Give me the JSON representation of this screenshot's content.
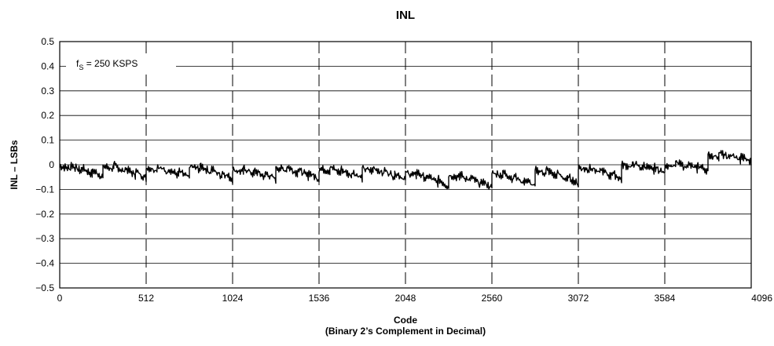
{
  "chart_data": {
    "type": "line",
    "title": "INL",
    "ylabel": "INL – LSBs",
    "xlabel": "Code",
    "xlabel_sub": "(Binary 2’s Complement in Decimal)",
    "xlim": [
      0,
      4096
    ],
    "ylim": [
      -0.5,
      0.5
    ],
    "x_ticks": [
      0,
      512,
      1024,
      1536,
      2048,
      2560,
      3072,
      3584,
      4096
    ],
    "x_tick_labels": [
      "0",
      "512",
      "1024",
      "1536",
      "2048",
      "2560",
      "3072",
      "3584",
      "4096"
    ],
    "y_ticks": [
      0.5,
      0.4,
      0.3,
      0.2,
      0.1,
      0,
      -0.1,
      -0.2,
      -0.3,
      -0.4,
      -0.5
    ],
    "y_tick_labels": [
      "0.5",
      "0.4",
      "0.3",
      "0.2",
      "0.1",
      "0",
      "−0.1",
      "−0.2",
      "−0.3",
      "−0.4",
      "−0.5"
    ],
    "grid": {
      "horizontal": "solid",
      "vertical": "dashed"
    },
    "annotation": {
      "main": "f",
      "subscript": "S",
      "rest": " = 250 KSPS"
    },
    "series": [
      {
        "color": "#000000",
        "x": [
          0,
          256,
          512,
          768,
          1024,
          1280,
          1536,
          1792,
          2048,
          2304,
          2560,
          2816,
          3072,
          3328,
          3584,
          3840,
          4096
        ],
        "start": [
          -0.005,
          -0.005,
          -0.01,
          -0.005,
          -0.02,
          -0.01,
          -0.015,
          -0.015,
          -0.03,
          -0.04,
          -0.03,
          -0.02,
          -0.01,
          0.0,
          0.0,
          0.04
        ],
        "end": [
          -0.05,
          -0.055,
          -0.055,
          -0.06,
          -0.06,
          -0.06,
          -0.055,
          -0.06,
          -0.09,
          -0.095,
          -0.09,
          -0.08,
          -0.06,
          -0.035,
          -0.025,
          0.01
        ]
      }
    ]
  }
}
